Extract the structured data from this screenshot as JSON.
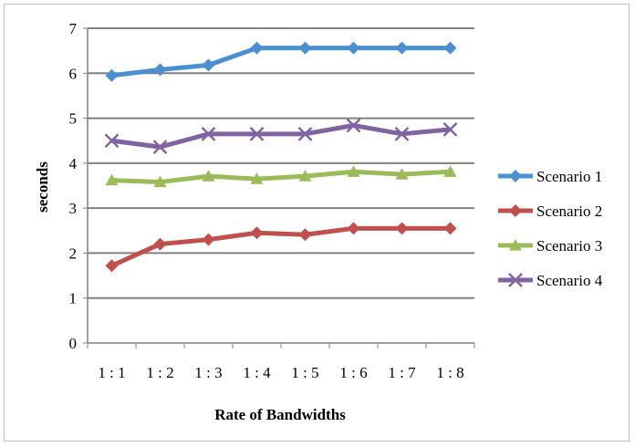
{
  "chart_data": {
    "type": "line",
    "title": "",
    "xlabel": "Rate of Bandwidths",
    "ylabel": "seconds",
    "categories": [
      "1 : 1",
      "1 : 2",
      "1 : 3",
      "1 : 4",
      "1 : 5",
      "1 : 6",
      "1 : 7",
      "1 : 8"
    ],
    "ylim": [
      0,
      7
    ],
    "yticks": [
      0,
      1,
      2,
      3,
      4,
      5,
      6,
      7
    ],
    "grid": true,
    "legend_position": "right",
    "series": [
      {
        "name": "Scenario 1",
        "color": "#4a90d0",
        "marker": "diamond",
        "values": [
          5.95,
          6.08,
          6.18,
          6.56,
          6.56,
          6.56,
          6.56,
          6.56
        ]
      },
      {
        "name": "Scenario 2",
        "color": "#c0504d",
        "marker": "diamond",
        "values": [
          1.72,
          2.2,
          2.3,
          2.45,
          2.41,
          2.55,
          2.55,
          2.55
        ]
      },
      {
        "name": "Scenario 3",
        "color": "#9bbb59",
        "marker": "triangle",
        "values": [
          3.62,
          3.58,
          3.71,
          3.65,
          3.71,
          3.81,
          3.75,
          3.81
        ]
      },
      {
        "name": "Scenario 4",
        "color": "#8064a2",
        "marker": "x",
        "values": [
          4.5,
          4.36,
          4.65,
          4.65,
          4.65,
          4.84,
          4.65,
          4.75
        ]
      }
    ]
  }
}
